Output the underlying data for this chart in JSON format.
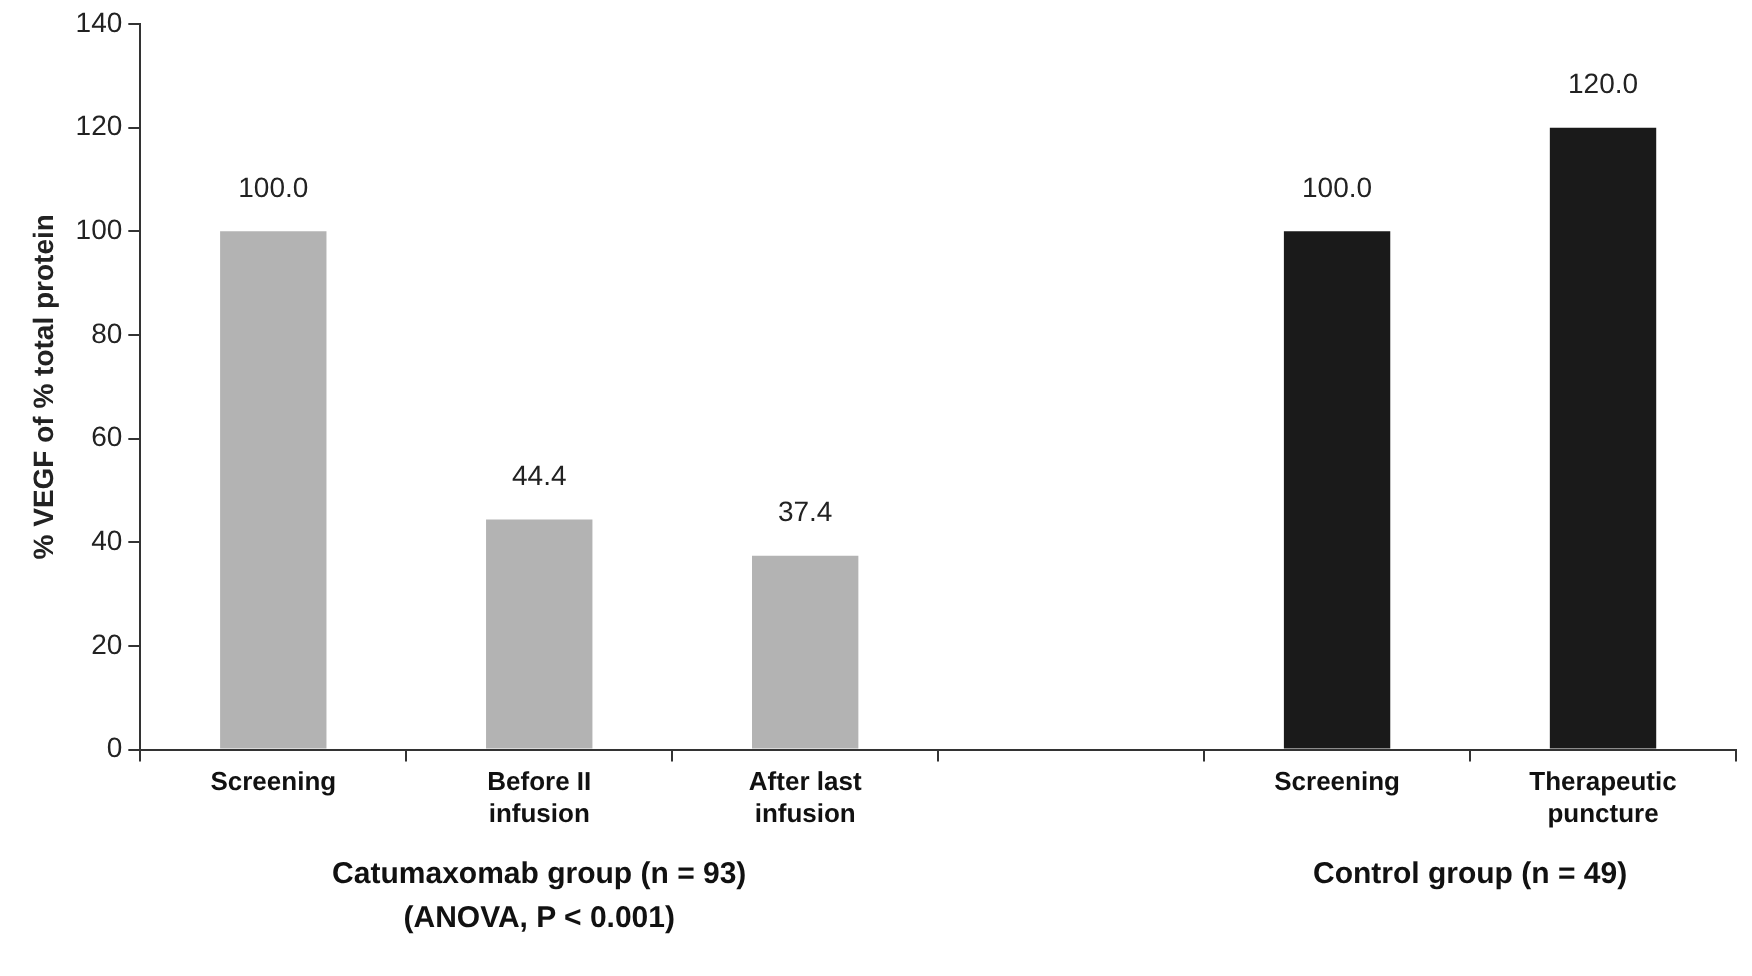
{
  "chart_data": {
    "type": "bar",
    "ylabel": "% VEGF of % total protein",
    "categories": [
      "Screening",
      "Before II infusion",
      "After last infusion",
      null,
      "Screening",
      "Therapeutic puncture"
    ],
    "values": [
      100.0,
      44.4,
      37.4,
      null,
      100.0,
      120.0
    ],
    "colors": [
      "#b3b3b3",
      "#b3b3b3",
      "#b3b3b3",
      "#b3b3b3",
      "#1a1a1a",
      "#1a1a1a"
    ],
    "value_labels": [
      "100.0",
      "44.4",
      "37.4",
      null,
      "100.0",
      "120.0"
    ],
    "ylim": [
      0,
      140
    ],
    "yticks": [
      0,
      20,
      40,
      60,
      80,
      100,
      120,
      140
    ],
    "grid": false,
    "legend": false,
    "annotations": [
      "Catumaxomab group (n = 93)",
      "(ANOVA, P < 0.001)",
      "Control group (n = 49)"
    ]
  }
}
